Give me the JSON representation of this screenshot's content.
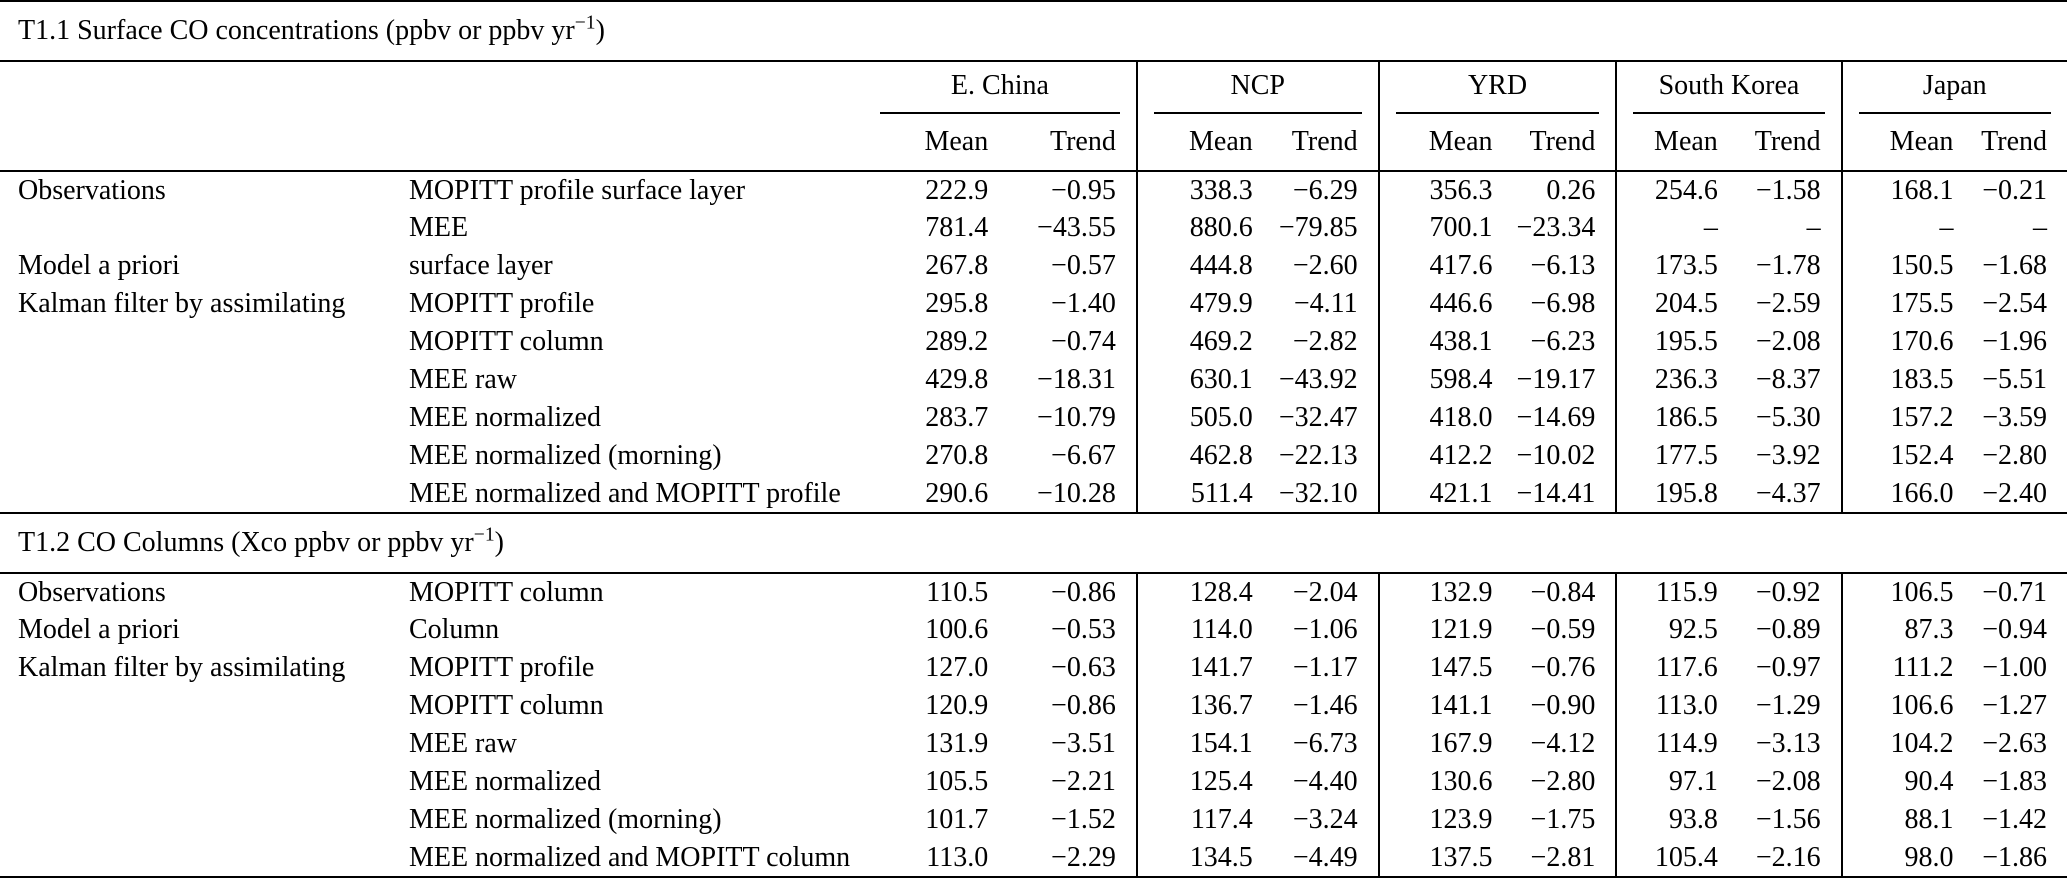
{
  "page": {
    "background": "#ffffff",
    "text_color": "#000000",
    "rule_color": "#000000"
  },
  "table": {
    "header": {
      "groups": [
        "E. China",
        "NCP",
        "YRD",
        "South Korea",
        "Japan"
      ],
      "subheaders": [
        "Mean",
        "Trend"
      ]
    },
    "sections": [
      {
        "title": {
          "text": "T1.1 Surface CO concentrations (ppbv or ppbv yr",
          "sup": "−1",
          "suffix": ")"
        },
        "rows": [
          {
            "group": "Observations",
            "method": "MOPITT profile surface layer",
            "values": [
              "222.9",
              "−0.95",
              "338.3",
              "−6.29",
              "356.3",
              "0.26",
              "254.6",
              "−1.58",
              "168.1",
              "−0.21"
            ]
          },
          {
            "group": "",
            "method": "MEE",
            "values": [
              "781.4",
              "−43.55",
              "880.6",
              "−79.85",
              "700.1",
              "−23.34",
              "–",
              "–",
              "–",
              "–"
            ]
          },
          {
            "group": "Model a priori",
            "method": "surface layer",
            "values": [
              "267.8",
              "−0.57",
              "444.8",
              "−2.60",
              "417.6",
              "−6.13",
              "173.5",
              "−1.78",
              "150.5",
              "−1.68"
            ]
          },
          {
            "group": "Kalman filter by assimilating",
            "method": "MOPITT profile",
            "values": [
              "295.8",
              "−1.40",
              "479.9",
              "−4.11",
              "446.6",
              "−6.98",
              "204.5",
              "−2.59",
              "175.5",
              "−2.54"
            ]
          },
          {
            "group": "",
            "method": "MOPITT column",
            "values": [
              "289.2",
              "−0.74",
              "469.2",
              "−2.82",
              "438.1",
              "−6.23",
              "195.5",
              "−2.08",
              "170.6",
              "−1.96"
            ]
          },
          {
            "group": "",
            "method": "MEE raw",
            "values": [
              "429.8",
              "−18.31",
              "630.1",
              "−43.92",
              "598.4",
              "−19.17",
              "236.3",
              "−8.37",
              "183.5",
              "−5.51"
            ]
          },
          {
            "group": "",
            "method": "MEE normalized",
            "values": [
              "283.7",
              "−10.79",
              "505.0",
              "−32.47",
              "418.0",
              "−14.69",
              "186.5",
              "−5.30",
              "157.2",
              "−3.59"
            ]
          },
          {
            "group": "",
            "method": "MEE normalized (morning)",
            "values": [
              "270.8",
              "−6.67",
              "462.8",
              "−22.13",
              "412.2",
              "−10.02",
              "177.5",
              "−3.92",
              "152.4",
              "−2.80"
            ]
          },
          {
            "group": "",
            "method": "MEE normalized and MOPITT profile",
            "values": [
              "290.6",
              "−10.28",
              "511.4",
              "−32.10",
              "421.1",
              "−14.41",
              "195.8",
              "−4.37",
              "166.0",
              "−2.40"
            ]
          }
        ]
      },
      {
        "title": {
          "text": "T1.2 CO Columns (Xco ppbv or ppbv yr",
          "sup": "−1",
          "suffix": ")"
        },
        "rows": [
          {
            "group": "Observations",
            "method": "MOPITT column",
            "values": [
              "110.5",
              "−0.86",
              "128.4",
              "−2.04",
              "132.9",
              "−0.84",
              "115.9",
              "−0.92",
              "106.5",
              "−0.71"
            ]
          },
          {
            "group": "Model a priori",
            "method": "Column",
            "values": [
              "100.6",
              "−0.53",
              "114.0",
              "−1.06",
              "121.9",
              "−0.59",
              "92.5",
              "−0.89",
              "87.3",
              "−0.94"
            ]
          },
          {
            "group": "Kalman filter by assimilating",
            "method": "MOPITT profile",
            "values": [
              "127.0",
              "−0.63",
              "141.7",
              "−1.17",
              "147.5",
              "−0.76",
              "117.6",
              "−0.97",
              "111.2",
              "−1.00"
            ]
          },
          {
            "group": "",
            "method": "MOPITT column",
            "values": [
              "120.9",
              "−0.86",
              "136.7",
              "−1.46",
              "141.1",
              "−0.90",
              "113.0",
              "−1.29",
              "106.6",
              "−1.27"
            ]
          },
          {
            "group": "",
            "method": "MEE raw",
            "values": [
              "131.9",
              "−3.51",
              "154.1",
              "−6.73",
              "167.9",
              "−4.12",
              "114.9",
              "−3.13",
              "104.2",
              "−2.63"
            ]
          },
          {
            "group": "",
            "method": "MEE normalized",
            "values": [
              "105.5",
              "−2.21",
              "125.4",
              "−4.40",
              "130.6",
              "−2.80",
              "97.1",
              "−2.08",
              "90.4",
              "−1.83"
            ]
          },
          {
            "group": "",
            "method": "MEE normalized (morning)",
            "values": [
              "101.7",
              "−1.52",
              "117.4",
              "−3.24",
              "123.9",
              "−1.75",
              "93.8",
              "−1.56",
              "88.1",
              "−1.42"
            ]
          },
          {
            "group": "",
            "method": "MEE normalized and MOPITT column",
            "values": [
              "113.0",
              "−2.29",
              "134.5",
              "−4.49",
              "137.5",
              "−2.81",
              "105.4",
              "−2.16",
              "98.0",
              "−1.86"
            ]
          }
        ]
      }
    ]
  }
}
